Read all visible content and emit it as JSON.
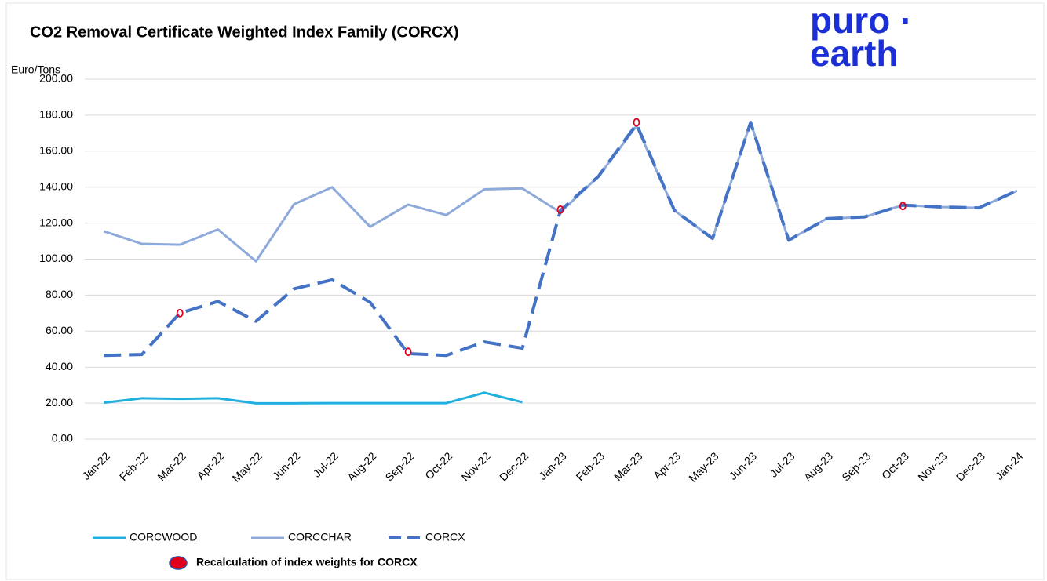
{
  "chart_data": {
    "type": "line",
    "title": "CO2 Removal Certificate Weighted Index Family (CORCX)",
    "logo": [
      "puro ·",
      "earth"
    ],
    "y_label": "Euro/Tons",
    "categories": [
      "Jan-22",
      "Feb-22",
      "Mar-22",
      "Apr-22",
      "May-22",
      "Jun-22",
      "Jul-22",
      "Aug-22",
      "Sep-22",
      "Oct-22",
      "Nov-22",
      "Dec-22",
      "Jan-23",
      "Feb-23",
      "Mar-23",
      "Apr-23",
      "May-23",
      "Jun-23",
      "Jul-23",
      "Aug-23",
      "Sep-23",
      "Oct-23",
      "Nov-23",
      "Dec-23",
      "Jan-24"
    ],
    "series": [
      {
        "name": "CORCWOOD",
        "color": "#1fb0e0",
        "style": "solid",
        "values": [
          20.2,
          22.7,
          22.4,
          22.7,
          19.9,
          19.9,
          20,
          20,
          20,
          20,
          25.8,
          20.5,
          null,
          null,
          null,
          null,
          null,
          null,
          null,
          null,
          null,
          null,
          null,
          null,
          null
        ]
      },
      {
        "name": "CORCCHAR",
        "color": "#8eaadb",
        "style": "solid",
        "values": [
          115.5,
          108.5,
          108,
          116.5,
          98.8,
          130.5,
          140,
          118,
          130.3,
          124.5,
          138.8,
          139.3,
          126,
          146,
          174,
          127,
          111.5,
          176,
          110.5,
          122.5,
          123.5,
          130,
          129,
          128.5,
          138
        ]
      },
      {
        "name": "CORCX",
        "color": "#4472c4",
        "style": "dashed",
        "values": [
          46.5,
          47,
          70,
          76.5,
          65.5,
          83.5,
          88.5,
          76,
          47.5,
          46.5,
          54,
          50.5,
          127,
          146,
          175,
          127,
          111.5,
          176,
          110.5,
          122.5,
          123.5,
          130,
          129,
          128.5,
          138
        ]
      },
      {
        "name": "Recalculation of index weights for CORCX",
        "color": "#e0001b",
        "style": "marker",
        "values": [
          null,
          null,
          70,
          null,
          null,
          null,
          null,
          null,
          48.5,
          null,
          null,
          null,
          127.5,
          null,
          176,
          null,
          null,
          null,
          null,
          null,
          null,
          129.5,
          null,
          null,
          null
        ]
      }
    ],
    "ylim": [
      0,
      200
    ],
    "yticks": [
      {
        "value": 0,
        "label": "0.00"
      },
      {
        "value": 20,
        "label": "20.00"
      },
      {
        "value": 40,
        "label": "40.00"
      },
      {
        "value": 60,
        "label": "60.00"
      },
      {
        "value": 80,
        "label": "80.00"
      },
      {
        "value": 100,
        "label": "100.00"
      },
      {
        "value": 120,
        "label": "120.00"
      },
      {
        "value": 140,
        "label": "140.00"
      },
      {
        "value": 160,
        "label": "160.00"
      },
      {
        "value": 180,
        "label": "180.00"
      },
      {
        "value": 200,
        "label": "200.00"
      }
    ],
    "grid": true
  }
}
